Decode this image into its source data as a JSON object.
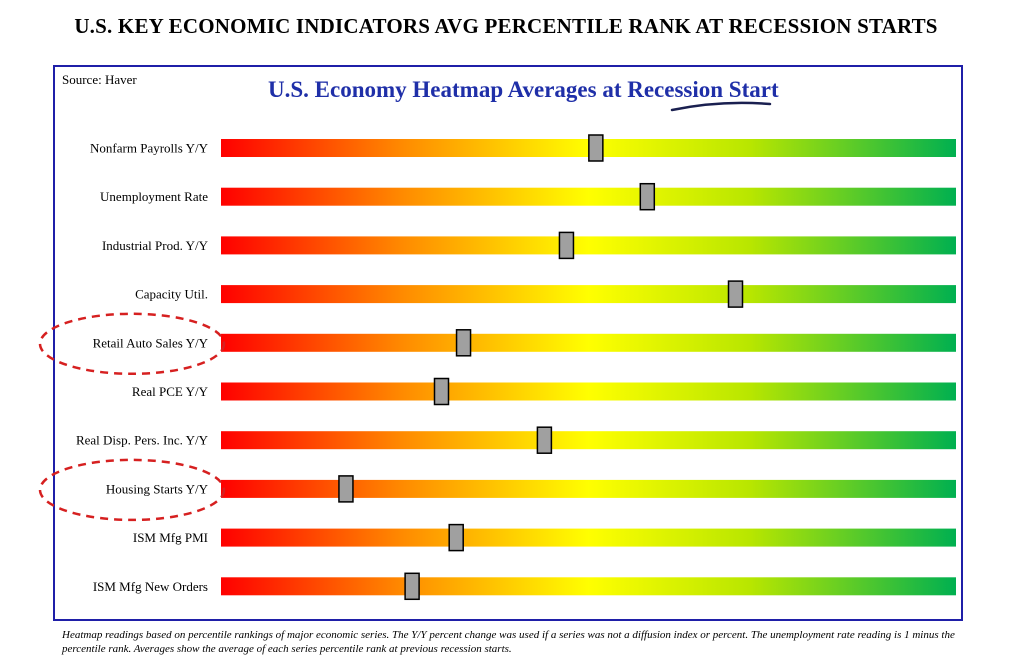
{
  "header": {
    "title": "U.S. KEY ECONOMIC INDICATORS AVG PERCENTILE RANK AT RECESSION STARTS"
  },
  "source": "Source: Haver",
  "footnote": "Heatmap readings based on percentile rankings of major economic series. The Y/Y percent change was used if a series was not a diffusion index or percent. The unemployment rate reading is 1 minus the percentile rank. Averages show the average of each series percentile rank at previous recession starts.",
  "colors": {
    "frame": "#1f1fa8",
    "title": "#1f2fa8",
    "gradient": [
      "#ff0000",
      "#ff8c00",
      "#ffff00",
      "#b8e600",
      "#00b050"
    ],
    "marker": "#a0a0a0",
    "circle": "#d62020"
  },
  "chart_data": {
    "type": "heatmap",
    "title": "U.S. Economy Heatmap Averages at Recession Start",
    "x_range": [
      0,
      100
    ],
    "highlighted": [
      "Retail Auto Sales Y/Y",
      "Housing Starts Y/Y"
    ],
    "categories": [
      "Nonfarm Payrolls Y/Y",
      "Unemployment Rate",
      "Industrial Prod. Y/Y",
      "Capacity Util.",
      "Retail Auto Sales Y/Y",
      "Real PCE Y/Y",
      "Real Disp. Pers. Inc. Y/Y",
      "Housing Starts Y/Y",
      "ISM Mfg PMI",
      "ISM Mfg New Orders"
    ],
    "values": [
      51,
      58,
      47,
      70,
      33,
      30,
      44,
      17,
      32,
      26
    ]
  }
}
